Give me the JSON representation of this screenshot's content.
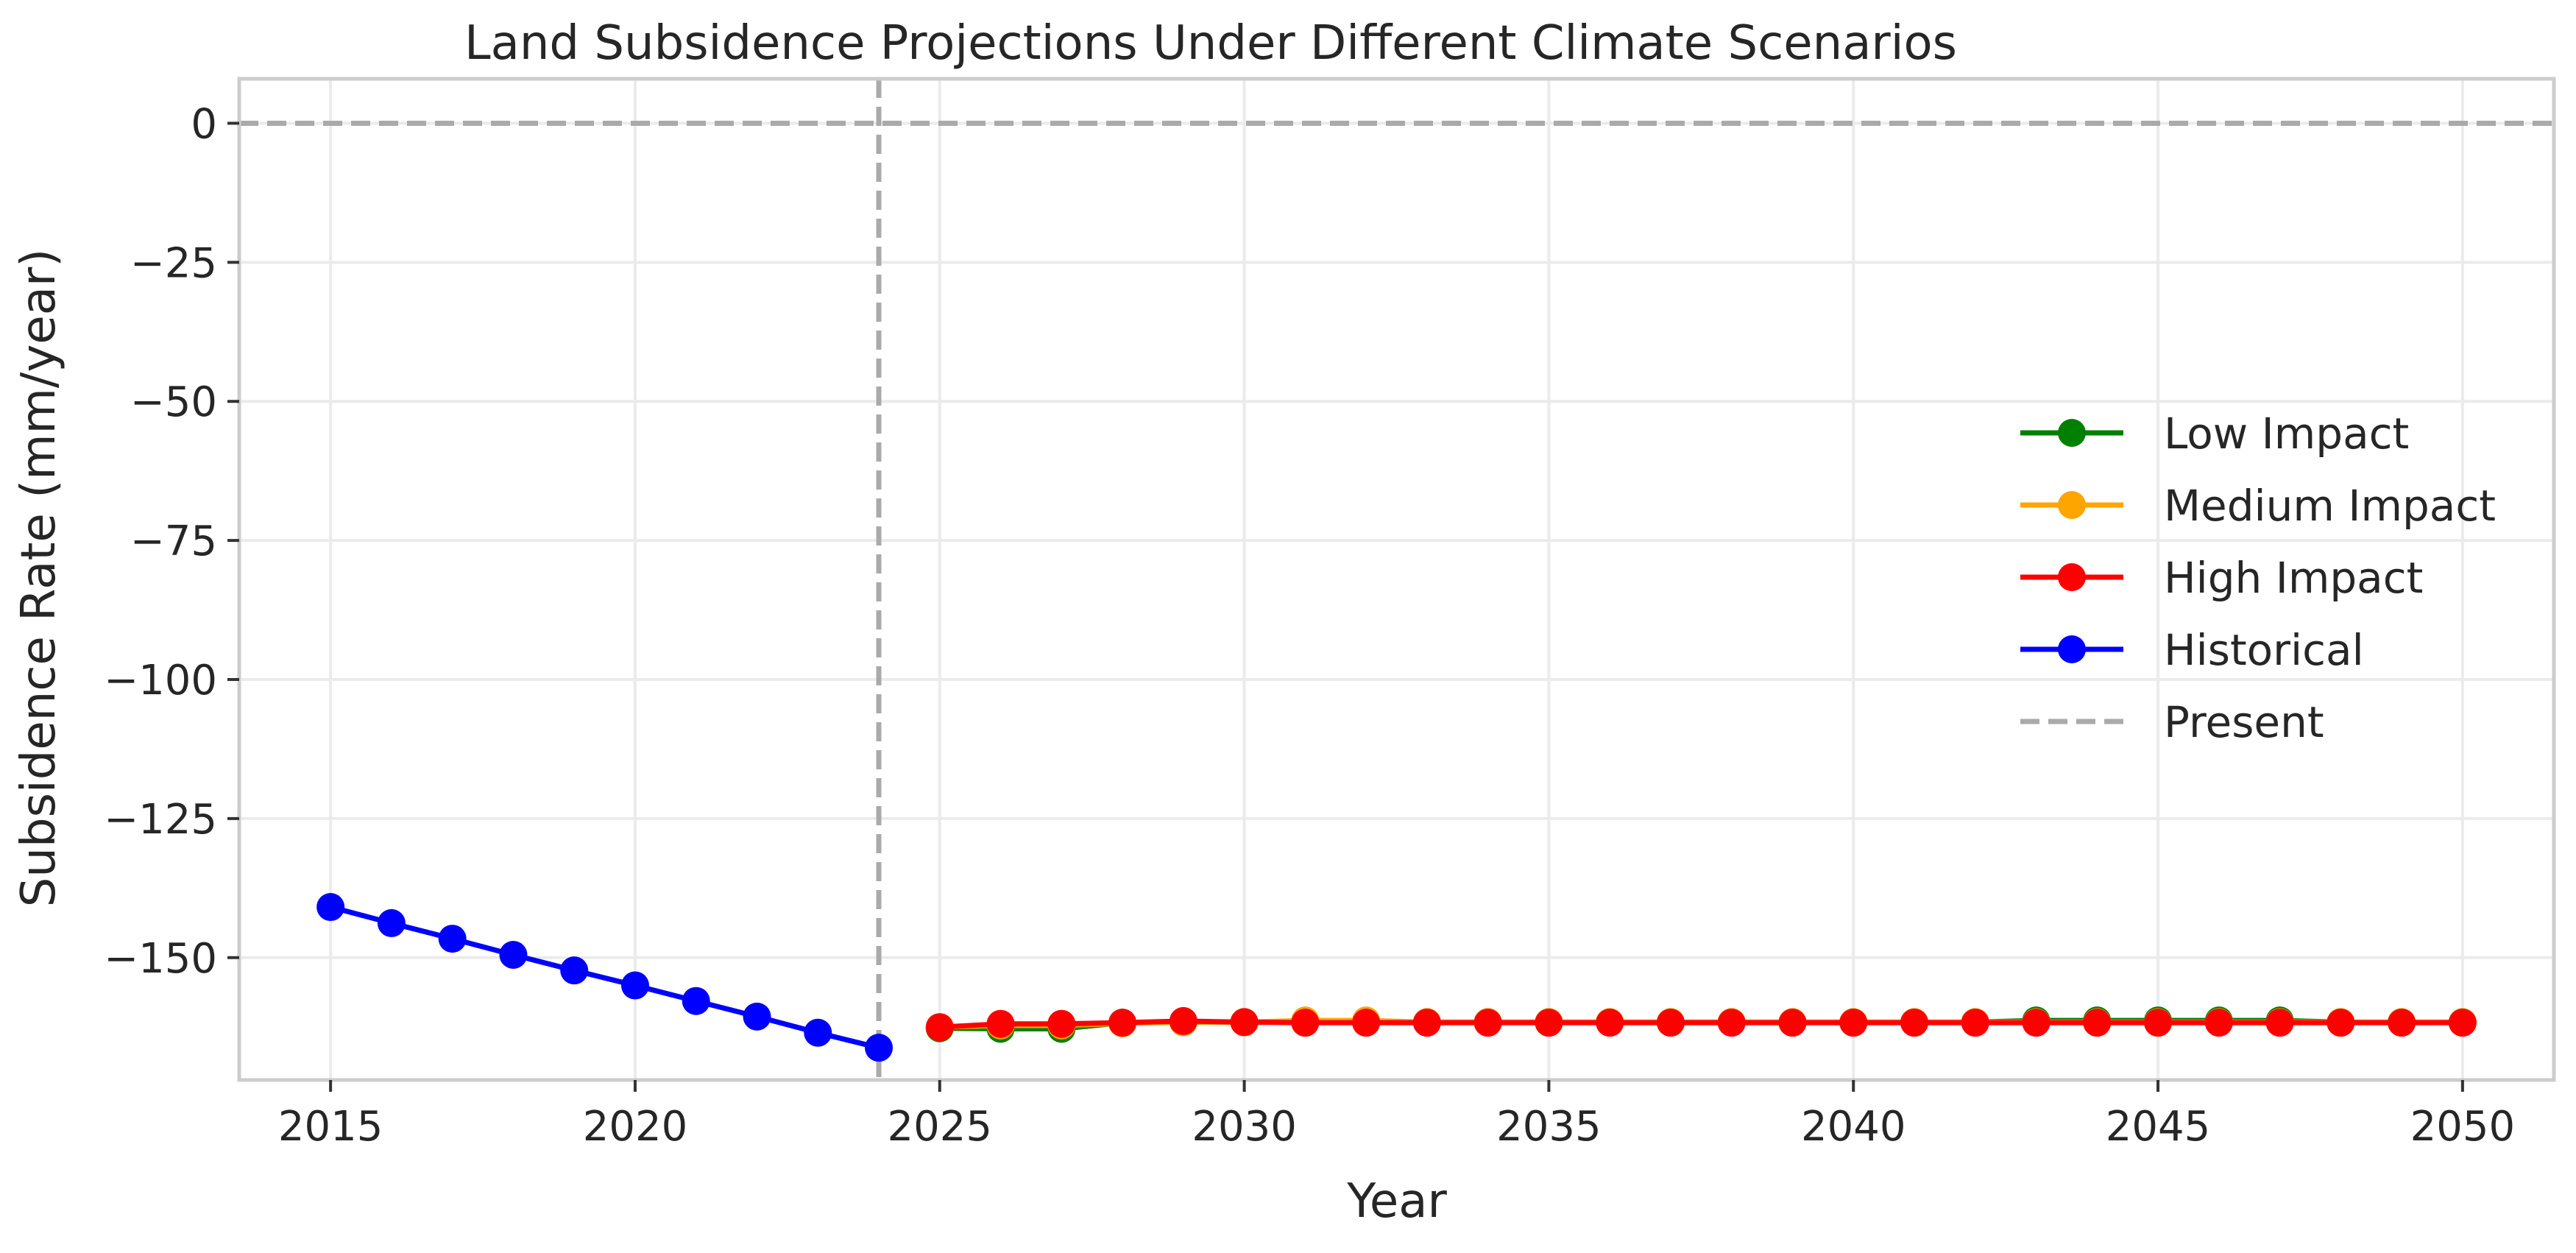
{
  "chart_data": {
    "type": "line",
    "title": "Land Subsidence Projections Under Different Climate Scenarios",
    "xlabel": "Year",
    "ylabel": "Subsidence Rate (mm/year)",
    "xlim": [
      2013.5,
      2051.5
    ],
    "ylim": [
      -172,
      8
    ],
    "x_ticks": [
      2015,
      2020,
      2025,
      2030,
      2035,
      2040,
      2045,
      2050
    ],
    "y_ticks": [
      0,
      -25,
      -50,
      -75,
      -100,
      -125,
      -150
    ],
    "x_tick_labels": [
      "2015",
      "2020",
      "2025",
      "2030",
      "2035",
      "2040",
      "2045",
      "2050"
    ],
    "y_tick_labels": [
      "0",
      "−25",
      "−50",
      "−75",
      "−100",
      "−125",
      "−150"
    ],
    "grid": true,
    "legend_position": "center-right",
    "series": [
      {
        "name": "Low Impact",
        "color": "#008000",
        "x": [
          2025,
          2026,
          2027,
          2028,
          2029,
          2030,
          2031,
          2032,
          2033,
          2034,
          2035,
          2036,
          2037,
          2038,
          2039,
          2040,
          2041,
          2042,
          2043,
          2044,
          2045,
          2046,
          2047,
          2048,
          2049,
          2050
        ],
        "values": [
          -162.7,
          -162.8,
          -162.8,
          -161.7,
          -161.6,
          -161.6,
          -161.5,
          -161.5,
          -161.6,
          -161.6,
          -161.6,
          -161.6,
          -161.6,
          -161.6,
          -161.6,
          -161.6,
          -161.6,
          -161.6,
          -161.3,
          -161.3,
          -161.3,
          -161.3,
          -161.3,
          -161.6,
          -161.6,
          -161.6
        ]
      },
      {
        "name": "Medium Impact",
        "color": "#FFA500",
        "x": [
          2025,
          2026,
          2027,
          2028,
          2029,
          2030,
          2031,
          2032,
          2033,
          2034,
          2035,
          2036,
          2037,
          2038,
          2039,
          2040,
          2041,
          2042,
          2043,
          2044,
          2045,
          2046,
          2047,
          2048,
          2049,
          2050
        ],
        "values": [
          -162.5,
          -162.2,
          -162.2,
          -161.8,
          -161.6,
          -161.6,
          -161.3,
          -161.3,
          -161.6,
          -161.6,
          -161.6,
          -161.6,
          -161.6,
          -161.6,
          -161.6,
          -161.6,
          -161.6,
          -161.6,
          -161.6,
          -161.6,
          -161.6,
          -161.6,
          -161.6,
          -161.6,
          -161.6,
          -161.6
        ]
      },
      {
        "name": "High Impact",
        "color": "#FF0000",
        "x": [
          2025,
          2026,
          2027,
          2028,
          2029,
          2030,
          2031,
          2032,
          2033,
          2034,
          2035,
          2036,
          2037,
          2038,
          2039,
          2040,
          2041,
          2042,
          2043,
          2044,
          2045,
          2046,
          2047,
          2048,
          2049,
          2050
        ],
        "values": [
          -162.5,
          -161.9,
          -161.9,
          -161.7,
          -161.4,
          -161.6,
          -161.7,
          -161.7,
          -161.7,
          -161.7,
          -161.7,
          -161.7,
          -161.7,
          -161.7,
          -161.7,
          -161.7,
          -161.7,
          -161.7,
          -161.7,
          -161.7,
          -161.7,
          -161.7,
          -161.7,
          -161.7,
          -161.7,
          -161.7
        ]
      },
      {
        "name": "Historical",
        "color": "#0000FF",
        "x": [
          2015,
          2016,
          2017,
          2018,
          2019,
          2020,
          2021,
          2022,
          2023,
          2024
        ],
        "values": [
          -140.9,
          -143.8,
          -146.6,
          -149.5,
          -152.3,
          -155.0,
          -157.8,
          -160.6,
          -163.5,
          -166.2
        ]
      }
    ],
    "reference_lines": [
      {
        "name": "Present",
        "orientation": "vertical",
        "x": 2024,
        "color": "#AAAAAA",
        "style": "dashed"
      },
      {
        "orientation": "horizontal",
        "y": 0,
        "color": "#AAAAAA",
        "style": "dashed"
      }
    ]
  }
}
